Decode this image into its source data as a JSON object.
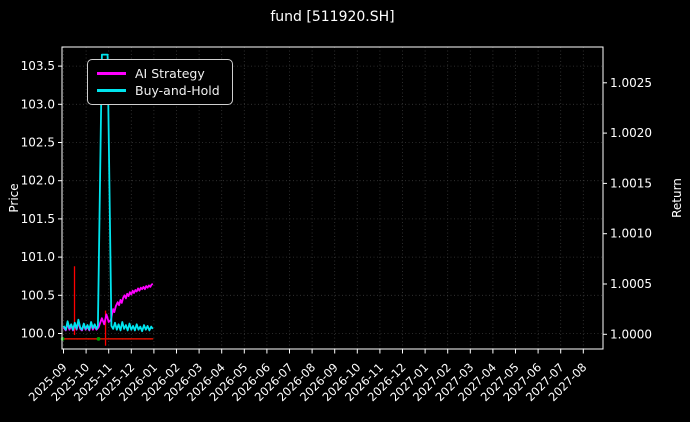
{
  "title": "fund [511920.SH]",
  "colors": {
    "background": "#000000",
    "axis": "#ffffff",
    "grid": "#383838",
    "ai_strategy": "#ff00ff",
    "buy_and_hold": "#00e5ee",
    "signal_line": "#ff0000",
    "red_marker": "#cc1100",
    "green_marker": "#00a000",
    "legend_border": "#cfcfcf"
  },
  "chart_data": {
    "type": "line",
    "title": "fund [511920.SH]",
    "ylabel_left": "Price",
    "ylabel_right": "Return",
    "grid": true,
    "x_tick_labels": [
      "2025-09",
      "2025-10",
      "2025-11",
      "2025-12",
      "2026-01",
      "2026-02",
      "2026-03",
      "2026-04",
      "2026-05",
      "2026-06",
      "2026-07",
      "2026-08",
      "2026-09",
      "2026-10",
      "2026-11",
      "2026-12",
      "2027-01",
      "2027-02",
      "2027-03",
      "2027-04",
      "2027-05",
      "2027-06",
      "2027-07",
      "2027-08"
    ],
    "y_left_ticks": [
      100.0,
      100.5,
      101.0,
      101.5,
      102.0,
      102.5,
      103.0,
      103.5
    ],
    "y_right_ticks": [
      1.0,
      1.0005,
      1.001,
      1.0015,
      1.002,
      1.0025
    ],
    "y_left_range": [
      99.8,
      103.75
    ],
    "legend": {
      "position": "upper-left",
      "entries": [
        {
          "label": "AI Strategy",
          "color": "#ff00ff"
        },
        {
          "label": "Buy-and-Hold",
          "color": "#00e5ee"
        }
      ]
    },
    "series": [
      {
        "name": "AI Strategy",
        "color": "#ff00ff",
        "points": [
          [
            0.0,
            100.08
          ],
          [
            0.1,
            100.04
          ],
          [
            0.18,
            100.13
          ],
          [
            0.26,
            100.05
          ],
          [
            0.34,
            100.1
          ],
          [
            0.42,
            100.04
          ],
          [
            0.5,
            100.12
          ],
          [
            0.58,
            100.05
          ],
          [
            0.66,
            100.15
          ],
          [
            0.74,
            100.06
          ],
          [
            0.82,
            100.04
          ],
          [
            0.9,
            100.11
          ],
          [
            0.98,
            100.05
          ],
          [
            1.06,
            100.09
          ],
          [
            1.14,
            100.04
          ],
          [
            1.22,
            100.12
          ],
          [
            1.3,
            100.05
          ],
          [
            1.38,
            100.1
          ],
          [
            1.46,
            100.05
          ],
          [
            1.55,
            100.08
          ],
          [
            1.7,
            100.2
          ],
          [
            1.8,
            100.12
          ],
          [
            1.9,
            100.25
          ],
          [
            2.0,
            100.15
          ],
          [
            2.1,
            100.18
          ],
          [
            2.15,
            100.26
          ],
          [
            2.2,
            100.32
          ],
          [
            2.25,
            100.28
          ],
          [
            2.32,
            100.36
          ],
          [
            2.4,
            100.41
          ],
          [
            2.46,
            100.37
          ],
          [
            2.52,
            100.44
          ],
          [
            2.58,
            100.4
          ],
          [
            2.64,
            100.47
          ],
          [
            2.7,
            100.5
          ],
          [
            2.76,
            100.46
          ],
          [
            2.82,
            100.52
          ],
          [
            2.88,
            100.49
          ],
          [
            2.94,
            100.54
          ],
          [
            3.0,
            100.51
          ],
          [
            3.06,
            100.56
          ],
          [
            3.12,
            100.53
          ],
          [
            3.18,
            100.57
          ],
          [
            3.24,
            100.55
          ],
          [
            3.3,
            100.59
          ],
          [
            3.36,
            100.56
          ],
          [
            3.42,
            100.6
          ],
          [
            3.48,
            100.58
          ],
          [
            3.54,
            100.61
          ],
          [
            3.6,
            100.58
          ],
          [
            3.66,
            100.62
          ],
          [
            3.72,
            100.6
          ],
          [
            3.78,
            100.63
          ],
          [
            3.84,
            100.61
          ],
          [
            3.9,
            100.64
          ],
          [
            3.95,
            100.65
          ]
        ]
      },
      {
        "name": "Buy-and-Hold",
        "color": "#00e5ee",
        "points": [
          [
            0.0,
            100.1
          ],
          [
            0.1,
            100.05
          ],
          [
            0.18,
            100.16
          ],
          [
            0.26,
            100.07
          ],
          [
            0.34,
            100.12
          ],
          [
            0.42,
            100.05
          ],
          [
            0.5,
            100.14
          ],
          [
            0.58,
            100.06
          ],
          [
            0.66,
            100.18
          ],
          [
            0.74,
            100.08
          ],
          [
            0.82,
            100.05
          ],
          [
            0.9,
            100.13
          ],
          [
            0.98,
            100.06
          ],
          [
            1.06,
            100.11
          ],
          [
            1.14,
            100.05
          ],
          [
            1.22,
            100.15
          ],
          [
            1.3,
            100.07
          ],
          [
            1.38,
            100.12
          ],
          [
            1.46,
            100.06
          ],
          [
            1.52,
            100.1
          ],
          [
            1.7,
            103.65
          ],
          [
            1.95,
            103.65
          ],
          [
            2.12,
            100.1
          ],
          [
            2.2,
            100.06
          ],
          [
            2.28,
            100.14
          ],
          [
            2.36,
            100.05
          ],
          [
            2.44,
            100.12
          ],
          [
            2.52,
            100.04
          ],
          [
            2.6,
            100.15
          ],
          [
            2.68,
            100.06
          ],
          [
            2.76,
            100.11
          ],
          [
            2.84,
            100.04
          ],
          [
            2.92,
            100.13
          ],
          [
            3.0,
            100.05
          ],
          [
            3.08,
            100.1
          ],
          [
            3.16,
            100.04
          ],
          [
            3.24,
            100.12
          ],
          [
            3.32,
            100.05
          ],
          [
            3.4,
            100.09
          ],
          [
            3.48,
            100.03
          ],
          [
            3.56,
            100.11
          ],
          [
            3.64,
            100.05
          ],
          [
            3.72,
            100.1
          ],
          [
            3.8,
            100.04
          ],
          [
            3.88,
            100.09
          ],
          [
            3.95,
            100.06
          ]
        ]
      }
    ],
    "signal_vlines": [
      {
        "x": 0.487,
        "y_from": 99.98,
        "y_to": 100.88,
        "color": "#ff0000"
      },
      {
        "x": 1.86,
        "y_from": 99.84,
        "y_to": 100.3,
        "color": "#ff0000"
      }
    ],
    "signal_markers": {
      "red_dashes": {
        "color": "#cc1100",
        "y": 99.93,
        "x": [
          0.03,
          0.16,
          0.29,
          0.42,
          0.55,
          0.66,
          0.79,
          0.92,
          1.05,
          1.16,
          1.29,
          1.42,
          1.55,
          1.66,
          1.79,
          1.92,
          2.03,
          2.16,
          2.29,
          2.42,
          2.55,
          2.66,
          2.79,
          2.92,
          3.03,
          3.16,
          3.29,
          3.42,
          3.55,
          3.66,
          3.79,
          3.9
        ]
      },
      "green_dots": {
        "color": "#00a000",
        "y": 99.93,
        "x": [
          -0.04,
          1.55
        ]
      }
    }
  }
}
